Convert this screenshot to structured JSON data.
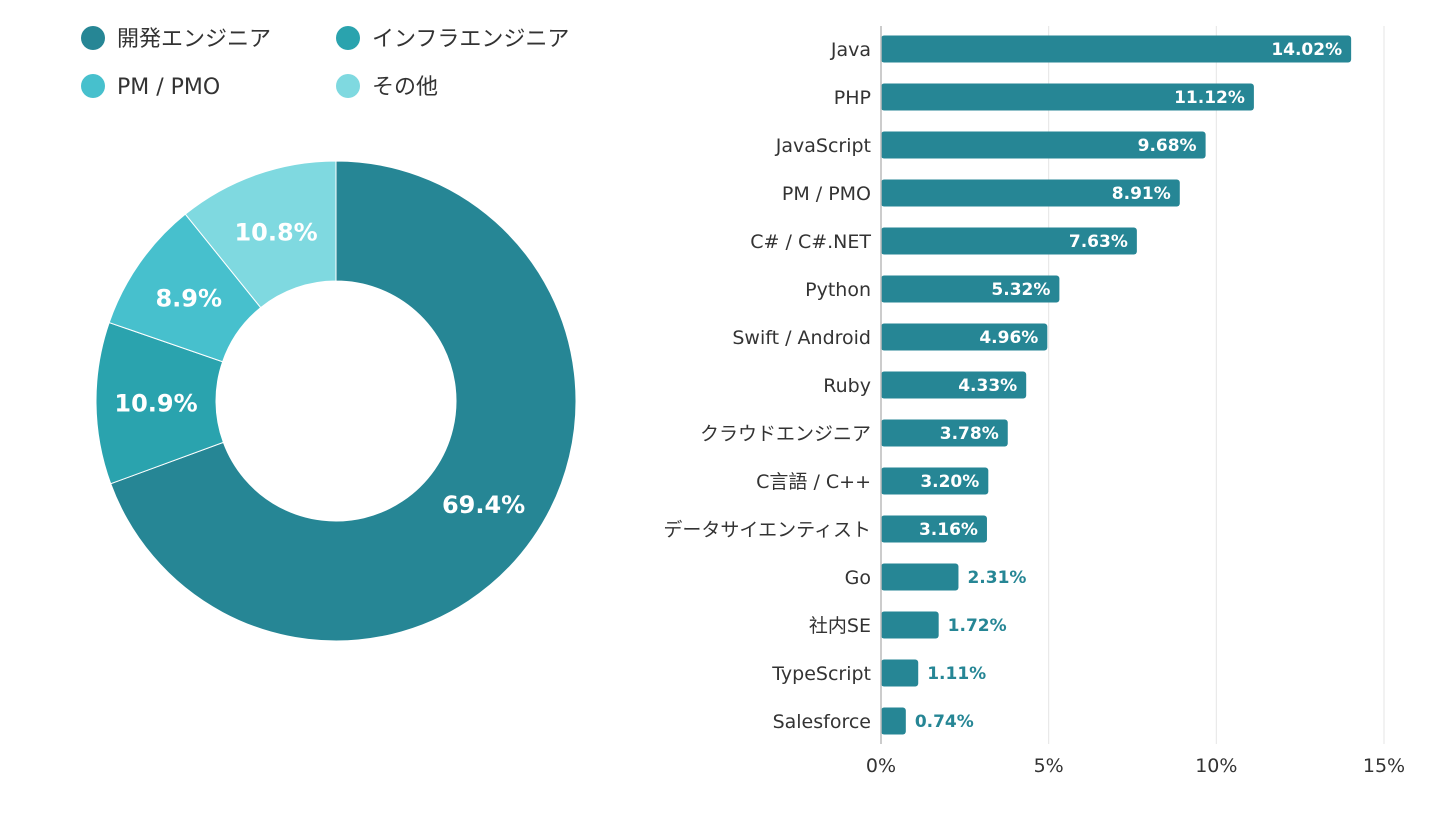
{
  "chart_data": [
    {
      "type": "pie",
      "subtype": "donut",
      "legend_position": "top",
      "legend": [
        {
          "name": "開発エンジニア",
          "color": "#268695"
        },
        {
          "name": "インフラエンジニア",
          "color": "#2aa3ae"
        },
        {
          "name": "PM / PMO",
          "color": "#47c0cd"
        },
        {
          "name": "その他",
          "color": "#7fd9e0"
        }
      ],
      "slices": [
        {
          "name": "開発エンジニア",
          "value": 69.4,
          "label": "69.4%",
          "color": "#268695"
        },
        {
          "name": "インフラエンジニア",
          "value": 10.9,
          "label": "10.9%",
          "color": "#2aa3ae"
        },
        {
          "name": "PM / PMO",
          "value": 8.9,
          "label": "8.9%",
          "color": "#47c0cd"
        },
        {
          "name": "その他",
          "value": 10.8,
          "label": "10.8%",
          "color": "#7fd9e0"
        }
      ]
    },
    {
      "type": "bar",
      "orientation": "horizontal",
      "bar_color": "#268695",
      "grid": true,
      "categories": [
        "Java",
        "PHP",
        "JavaScript",
        "PM / PMO",
        "C# / C#.NET",
        "Python",
        "Swift / Android",
        "Ruby",
        "クラウドエンジニア",
        "C言語 / C++",
        "データサイエンティスト",
        "Go",
        "社内SE",
        "TypeScript",
        "Salesforce"
      ],
      "values": [
        14.02,
        11.12,
        9.68,
        8.91,
        7.63,
        5.32,
        4.96,
        4.33,
        3.78,
        3.2,
        3.16,
        2.31,
        1.72,
        1.11,
        0.74
      ],
      "data_labels": [
        "14.02%",
        "11.12%",
        "9.68%",
        "8.91%",
        "7.63%",
        "5.32%",
        "4.96%",
        "4.33%",
        "3.78%",
        "3.20%",
        "3.16%",
        "2.31%",
        "1.72%",
        "1.11%",
        "0.74%"
      ],
      "xlim": [
        0,
        15
      ],
      "xticks": [
        "0%",
        "5%",
        "10%",
        "15%"
      ],
      "xtick_values": [
        0,
        5,
        10,
        15
      ]
    }
  ]
}
